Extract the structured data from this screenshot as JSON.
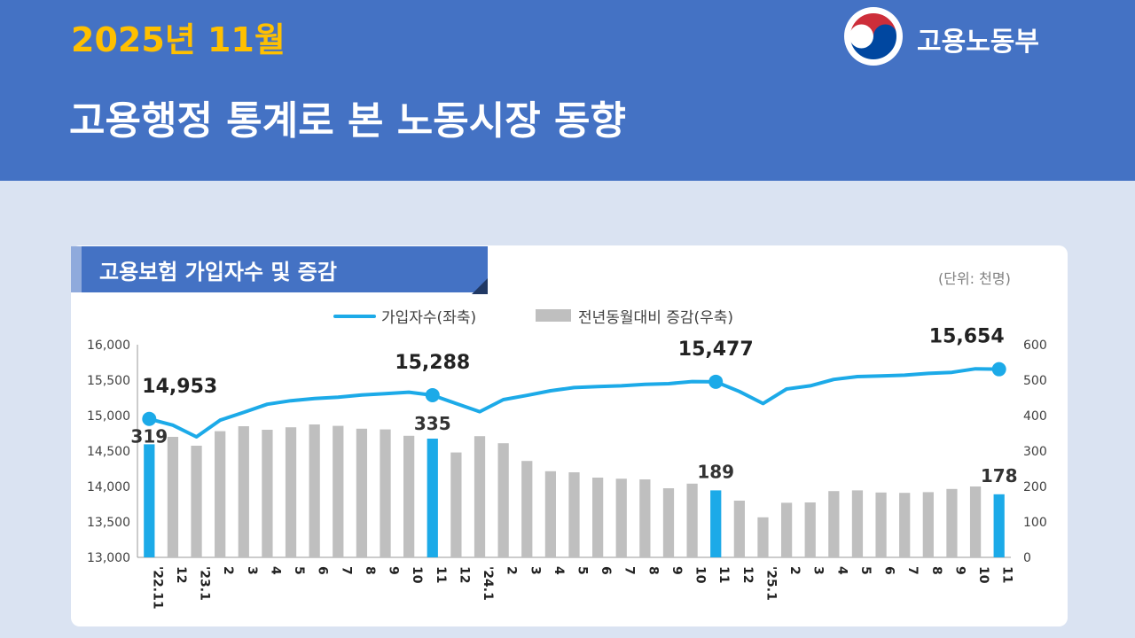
{
  "header": {
    "date": "2025년 11월",
    "title": "고용행정 통계로 본 노동시장 동향",
    "ministry": "고용노동부",
    "background_color": "#4472c4",
    "date_color": "#ffc000"
  },
  "card": {
    "title": "고용보험 가입자수 및 증감",
    "unit": "(단위: 천명)"
  },
  "chart_data": {
    "type": "bar",
    "categories": [
      "'22.11",
      "12",
      "'23.1",
      "2",
      "3",
      "4",
      "5",
      "6",
      "7",
      "8",
      "9",
      "10",
      "11",
      "12",
      "'24.1",
      "2",
      "3",
      "4",
      "5",
      "6",
      "7",
      "8",
      "9",
      "10",
      "11",
      "12",
      "'25.1",
      "2",
      "3",
      "4",
      "5",
      "6",
      "7",
      "8",
      "9",
      "10",
      "11"
    ],
    "series": [
      {
        "name": "가입자수(좌축)",
        "type": "line",
        "axis": "left",
        "color": "#1caae8",
        "values": [
          14953,
          14865,
          14700,
          14935,
          15045,
          15160,
          15210,
          15240,
          15260,
          15290,
          15310,
          15330,
          15288,
          15170,
          15055,
          15225,
          15285,
          15350,
          15395,
          15410,
          15420,
          15440,
          15450,
          15480,
          15477,
          15340,
          15170,
          15375,
          15420,
          15510,
          15550,
          15560,
          15570,
          15595,
          15610,
          15660,
          15654
        ]
      },
      {
        "name": "전년동월대비 증감(우축)",
        "type": "bar",
        "axis": "right",
        "color": "#bfbfbf",
        "highlight_color": "#1caae8",
        "values": [
          319,
          340,
          315,
          356,
          370,
          360,
          367,
          375,
          371,
          363,
          361,
          343,
          335,
          296,
          342,
          322,
          272,
          243,
          240,
          225,
          222,
          220,
          195,
          208,
          189,
          160,
          113,
          154,
          155,
          187,
          189,
          183,
          182,
          184,
          193,
          200,
          178
        ]
      }
    ],
    "highlight_indices": [
      0,
      12,
      24,
      36
    ],
    "data_labels": {
      "line": [
        {
          "index": 0,
          "text": "14,953"
        },
        {
          "index": 12,
          "text": "15,288"
        },
        {
          "index": 24,
          "text": "15,477"
        },
        {
          "index": 36,
          "text": "15,654"
        }
      ],
      "bar": [
        {
          "index": 0,
          "text": "319"
        },
        {
          "index": 12,
          "text": "335"
        },
        {
          "index": 24,
          "text": "189"
        },
        {
          "index": 36,
          "text": "178"
        }
      ]
    },
    "y_left": {
      "min": 13000,
      "max": 16000,
      "ticks": [
        "13,000",
        "13,500",
        "14,000",
        "14,500",
        "15,000",
        "15,500",
        "16,000"
      ]
    },
    "y_right": {
      "min": 0,
      "max": 600,
      "ticks": [
        "0",
        "100",
        "200",
        "300",
        "400",
        "500",
        "600"
      ]
    },
    "legend": [
      "가입자수(좌축)",
      "전년동월대비 증감(우축)"
    ],
    "legend_position": "top-center",
    "grid": false
  }
}
